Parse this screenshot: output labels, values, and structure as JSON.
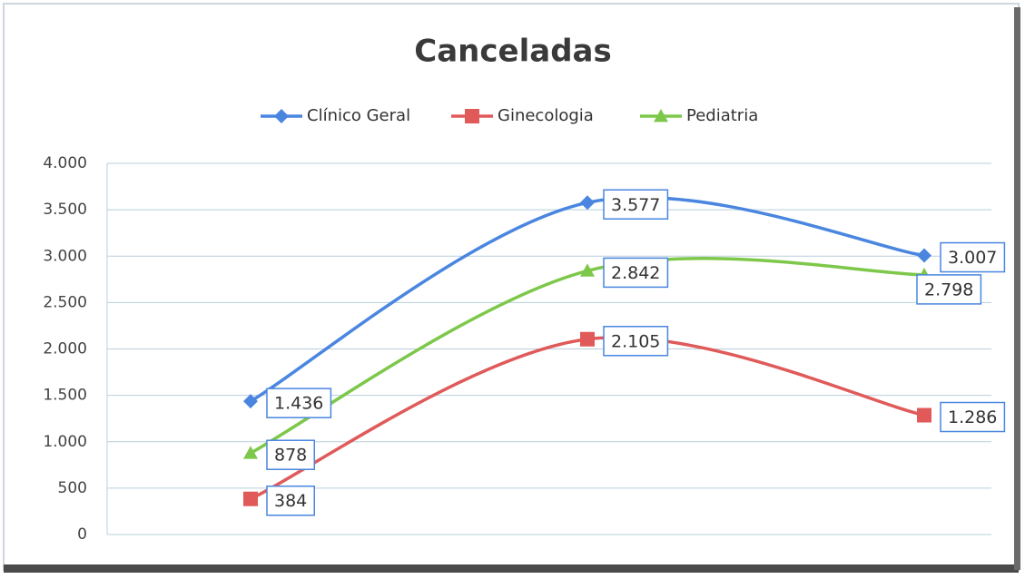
{
  "chart_data": {
    "type": "line",
    "title": "Canceladas",
    "categories": [
      null,
      null,
      null
    ],
    "series": [
      {
        "name": "Clínico Geral",
        "color": "#4a86e0",
        "marker": "diamond",
        "values": [
          1436,
          3577,
          3007
        ],
        "value_labels": [
          "1.436",
          "3.577",
          "3.007"
        ]
      },
      {
        "name": "Ginecologia",
        "color": "#e05a5a",
        "marker": "square",
        "values": [
          384,
          2105,
          1286
        ],
        "value_labels": [
          "384",
          "2.105",
          "1.286"
        ]
      },
      {
        "name": "Pediatria",
        "color": "#7dc84a",
        "marker": "triangle",
        "values": [
          878,
          2842,
          2798
        ],
        "value_labels": [
          "878",
          "2.842",
          "2.798"
        ]
      }
    ],
    "ylim": [
      0,
      4000
    ],
    "yticks": [
      0,
      500,
      {
        "value": 1000,
        "label": "1.000"
      },
      {
        "value": 1500,
        "label": "1.500"
      },
      {
        "value": 2000,
        "label": "2.000"
      },
      {
        "value": 2500,
        "label": "2.500"
      },
      {
        "value": 3000,
        "label": "3.000"
      },
      {
        "value": 3500,
        "label": "3.500"
      },
      {
        "value": 4000,
        "label": "4.000"
      }
    ],
    "grid": true,
    "smooth": true,
    "legend": "top"
  }
}
